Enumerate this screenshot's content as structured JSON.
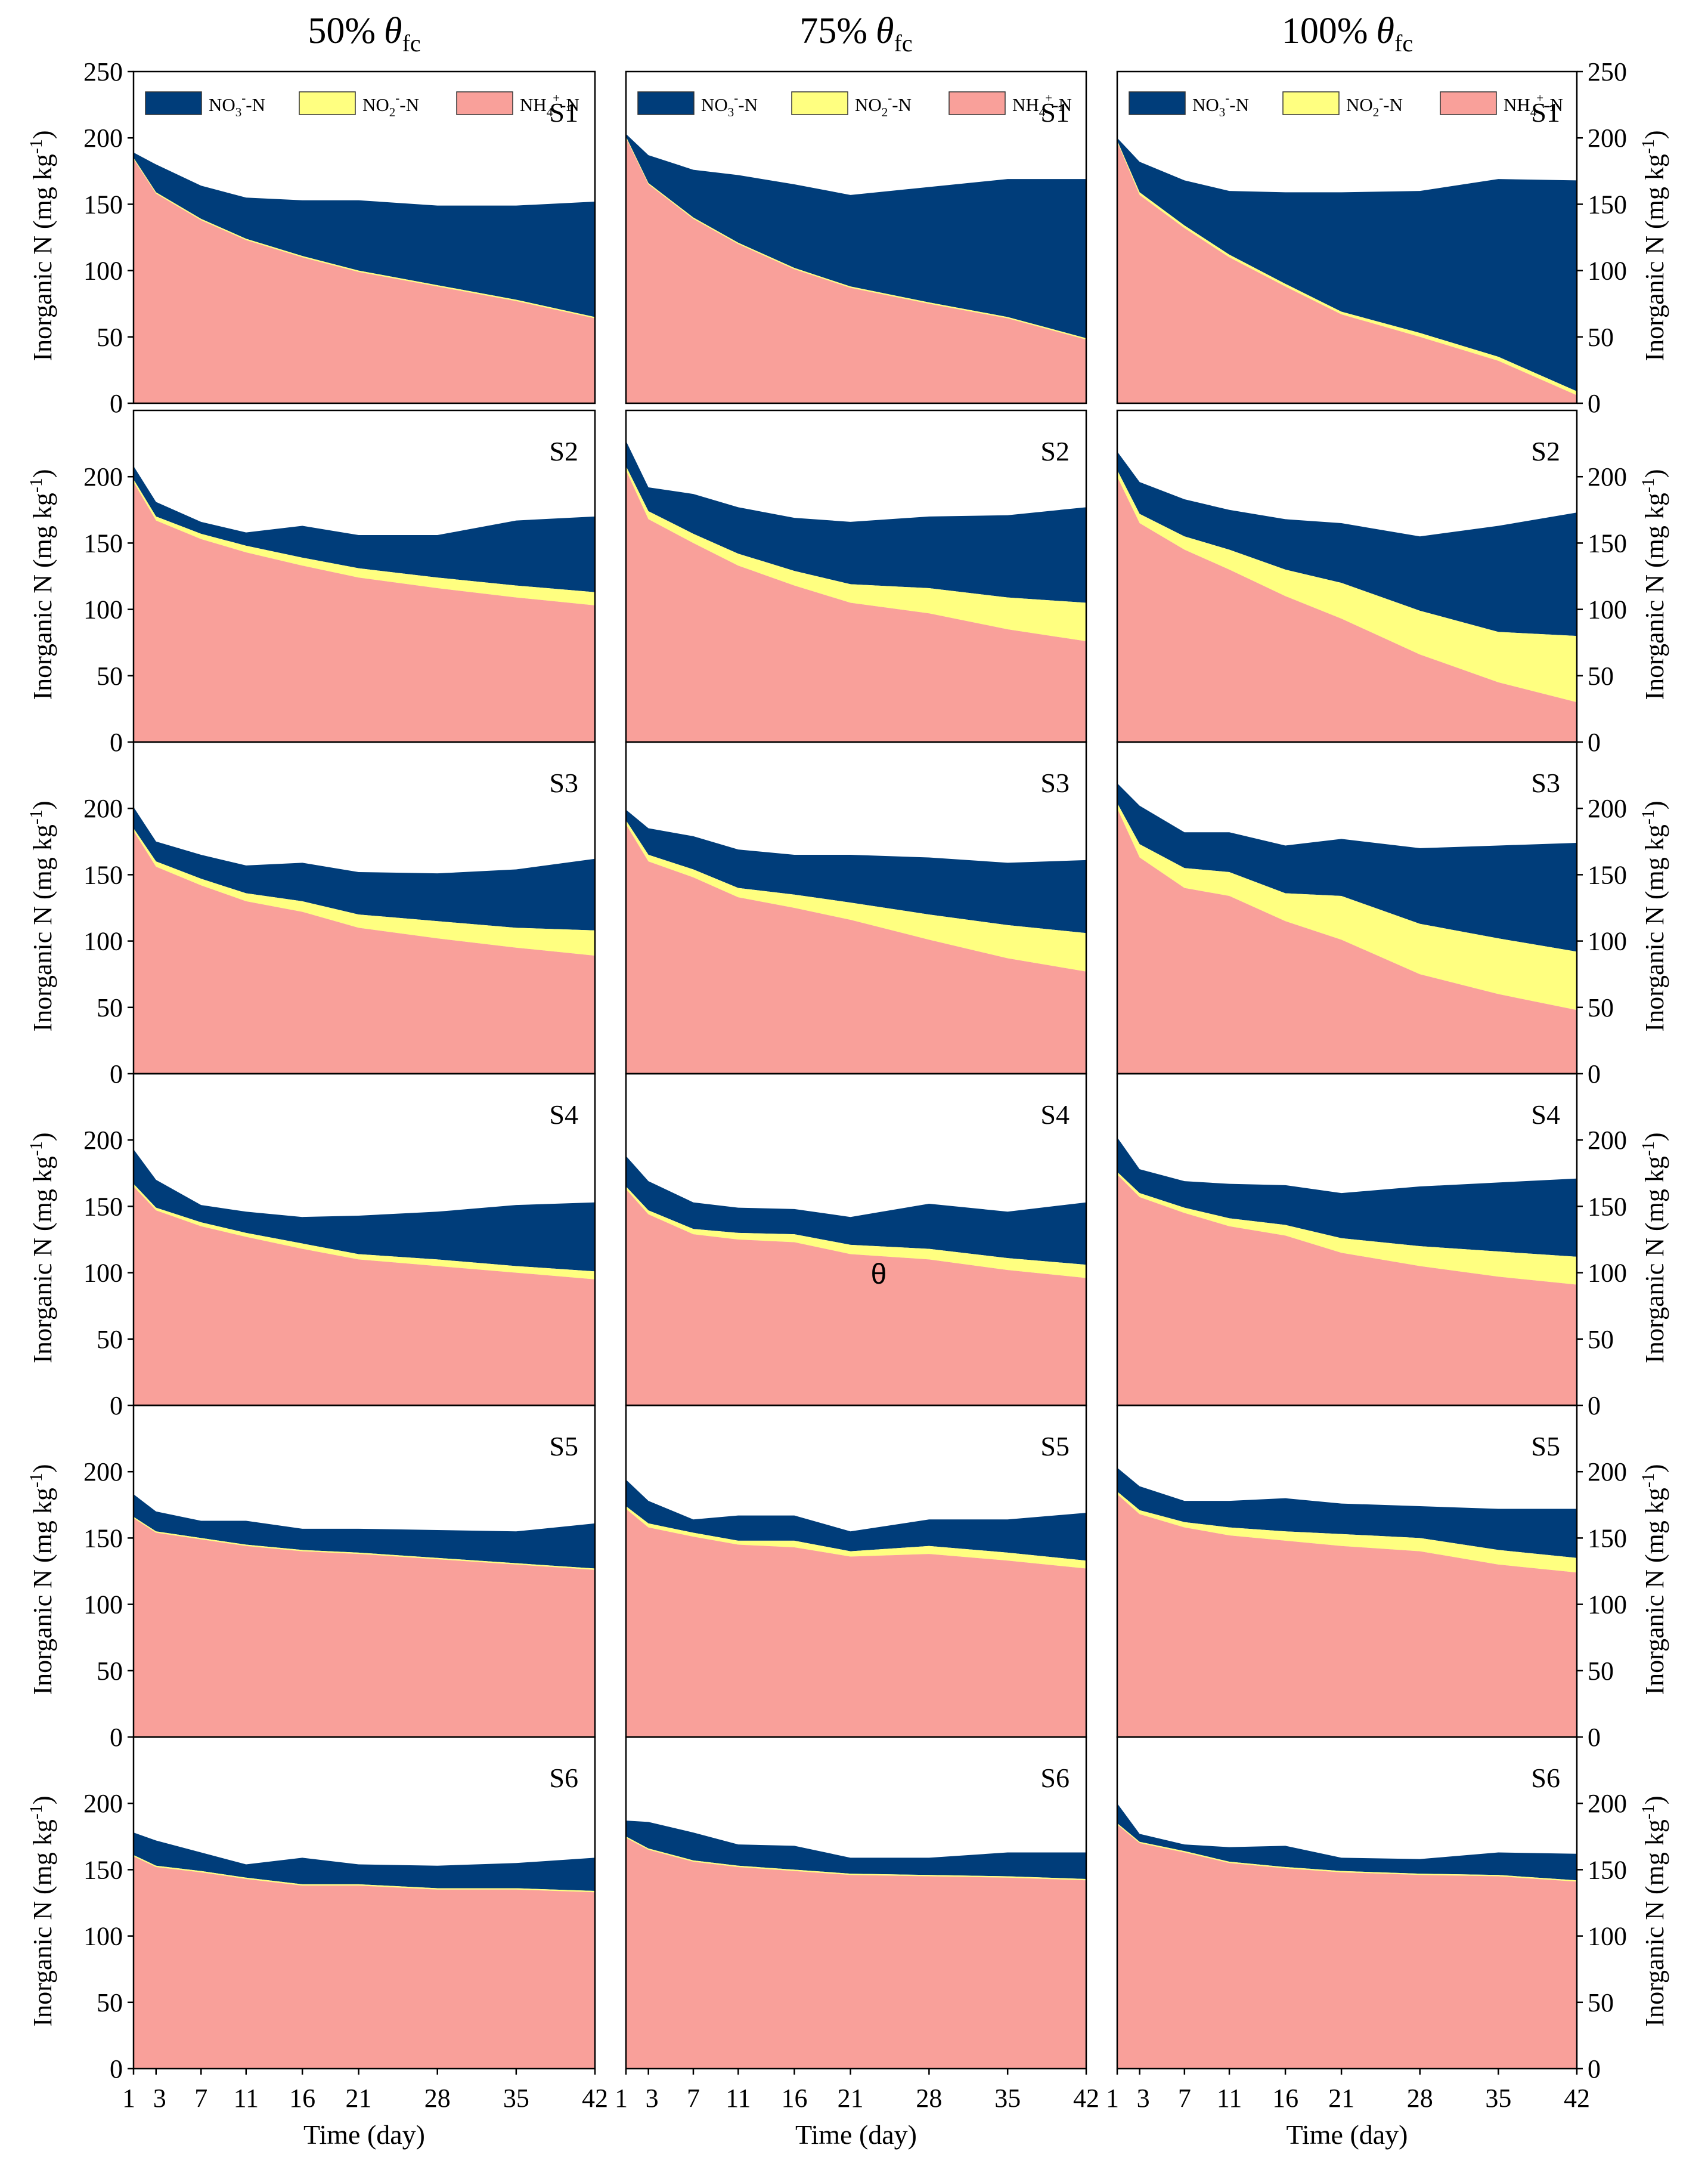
{
  "colors": {
    "no3": "#003D7A",
    "no2": "#FFFF80",
    "nh4": "#F9A09A",
    "axis": "#000000"
  },
  "column_headers": [
    {
      "pct": "50%",
      "theta": "θ",
      "sub": "fc"
    },
    {
      "pct": "75%",
      "theta": "θ",
      "sub": "fc"
    },
    {
      "pct": "100%",
      "theta": "θ",
      "sub": "fc"
    }
  ],
  "legend": {
    "no3": {
      "base": "NO",
      "sub": "3",
      "sup": "-",
      "tail": "-N"
    },
    "no2": {
      "base": "NO",
      "sub": "2",
      "sup": "-",
      "tail": "-N"
    },
    "nh4": {
      "base": "NH",
      "sub": "4",
      "sup": "+",
      "tail": "-N"
    }
  },
  "y_axis": {
    "label_main": "Inorganic N (mg kg",
    "label_sup": "-1",
    "label_close": ")"
  },
  "x_axis": {
    "label": "Time (day)"
  },
  "annotation": "θ",
  "chart_data": {
    "type": "area",
    "stacked": true,
    "x": [
      1,
      3,
      7,
      11,
      16,
      21,
      28,
      35,
      42
    ],
    "x_ticks": [
      "1",
      "3",
      "7",
      "11",
      "16",
      "21",
      "28",
      "35",
      "42"
    ],
    "xlim": [
      1,
      42
    ],
    "ylim": [
      0,
      250
    ],
    "y_ticks": [
      "0",
      "50",
      "100",
      "150",
      "200",
      "250"
    ],
    "series_names": [
      "NH4+-N",
      "NO2--N",
      "NO3--N"
    ],
    "rows": [
      "S1",
      "S2",
      "S3",
      "S4",
      "S5",
      "S6"
    ],
    "columns": [
      "50% θfc",
      "75% θfc",
      "100% θfc"
    ],
    "panels": [
      [
        {
          "label": "S1",
          "nh4": [
            184,
            158,
            138,
            123,
            110,
            99,
            88,
            77,
            64
          ],
          "no2": [
            1,
            1,
            1,
            1,
            1,
            1,
            1,
            1,
            1
          ],
          "no3": [
            4,
            21,
            25,
            31,
            42,
            53,
            60,
            71,
            87
          ]
        },
        {
          "label": "S1",
          "nh4": [
            200,
            165,
            139,
            120,
            101,
            87,
            75,
            64,
            48
          ],
          "no2": [
            1,
            1,
            1,
            1,
            1,
            1,
            1,
            1,
            1
          ],
          "no3": [
            2,
            21,
            36,
            51,
            63,
            69,
            87,
            104,
            120
          ]
        },
        {
          "label": "S1",
          "nh4": [
            197,
            157,
            132,
            110,
            88,
            67,
            50,
            32,
            6
          ],
          "no2": [
            1,
            2,
            2,
            2,
            2,
            2,
            3,
            3,
            3
          ],
          "no3": [
            2,
            23,
            34,
            48,
            69,
            90,
            107,
            134,
            159
          ]
        }
      ],
      [
        {
          "label": "S2",
          "nh4": [
            196,
            167,
            153,
            143,
            133,
            124,
            116,
            109,
            103
          ],
          "no2": [
            2,
            3,
            4,
            5,
            6,
            7,
            8,
            9,
            10
          ],
          "no3": [
            10,
            11,
            9,
            10,
            24,
            25,
            32,
            49,
            57
          ]
        },
        {
          "label": "S2",
          "nh4": [
            205,
            168,
            150,
            133,
            118,
            105,
            97,
            85,
            76
          ],
          "no2": [
            3,
            6,
            7,
            9,
            11,
            14,
            19,
            24,
            29
          ],
          "no3": [
            19,
            18,
            30,
            35,
            40,
            47,
            54,
            62,
            72
          ]
        },
        {
          "label": "S2",
          "nh4": [
            200,
            165,
            145,
            130,
            110,
            93,
            66,
            45,
            30
          ],
          "no2": [
            5,
            7,
            10,
            15,
            20,
            27,
            33,
            38,
            50
          ],
          "no3": [
            14,
            24,
            28,
            30,
            38,
            45,
            56,
            80,
            93
          ]
        }
      ],
      [
        {
          "label": "S3",
          "nh4": [
            183,
            156,
            142,
            130,
            122,
            110,
            102,
            95,
            89
          ],
          "no2": [
            2,
            4,
            5,
            6,
            8,
            10,
            13,
            15,
            19
          ],
          "no3": [
            16,
            15,
            18,
            21,
            29,
            32,
            36,
            44,
            54
          ]
        },
        {
          "label": "S3",
          "nh4": [
            188,
            160,
            148,
            133,
            125,
            116,
            101,
            87,
            77
          ],
          "no2": [
            3,
            5,
            6,
            7,
            10,
            13,
            19,
            25,
            29
          ],
          "no3": [
            8,
            20,
            25,
            29,
            30,
            36,
            43,
            47,
            55
          ]
        },
        {
          "label": "S3",
          "nh4": [
            200,
            163,
            140,
            134,
            115,
            101,
            75,
            60,
            48
          ],
          "no2": [
            4,
            10,
            15,
            18,
            21,
            33,
            38,
            42,
            44
          ],
          "no3": [
            15,
            29,
            27,
            30,
            36,
            43,
            57,
            70,
            82
          ]
        }
      ],
      [
        {
          "label": "S4",
          "nh4": [
            165,
            147,
            135,
            127,
            118,
            110,
            105,
            100,
            95
          ],
          "no2": [
            2,
            2,
            3,
            3,
            4,
            4,
            5,
            5,
            6
          ],
          "no3": [
            26,
            21,
            13,
            16,
            20,
            29,
            36,
            46,
            52
          ]
        },
        {
          "label": "S4",
          "nh4": [
            163,
            144,
            129,
            125,
            123,
            114,
            110,
            102,
            96
          ],
          "no2": [
            2,
            3,
            4,
            5,
            6,
            7,
            8,
            9,
            10
          ],
          "no3": [
            23,
            22,
            20,
            19,
            19,
            21,
            34,
            35,
            47
          ]
        },
        {
          "label": "S4",
          "nh4": [
            174,
            157,
            145,
            135,
            128,
            115,
            105,
            97,
            91
          ],
          "no2": [
            2,
            3,
            4,
            6,
            8,
            11,
            15,
            19,
            21
          ],
          "no3": [
            26,
            18,
            20,
            26,
            30,
            34,
            45,
            52,
            59
          ]
        }
      ],
      [
        {
          "label": "S5",
          "nh4": [
            165,
            154,
            149,
            144,
            140,
            138,
            134,
            130,
            126
          ],
          "no2": [
            1,
            1,
            1,
            1,
            1,
            1,
            1,
            1,
            1
          ],
          "no3": [
            17,
            15,
            13,
            18,
            16,
            18,
            21,
            24,
            34
          ]
        },
        {
          "label": "S5",
          "nh4": [
            172,
            158,
            151,
            145,
            143,
            136,
            138,
            133,
            127
          ],
          "no2": [
            2,
            3,
            3,
            3,
            5,
            4,
            6,
            6,
            6
          ],
          "no3": [
            20,
            17,
            10,
            19,
            19,
            15,
            20,
            25,
            36
          ]
        },
        {
          "label": "S5",
          "nh4": [
            183,
            168,
            158,
            152,
            148,
            144,
            140,
            130,
            124
          ],
          "no2": [
            2,
            3,
            4,
            6,
            7,
            9,
            10,
            11,
            11
          ],
          "no3": [
            18,
            18,
            16,
            20,
            25,
            23,
            24,
            31,
            37
          ]
        }
      ],
      [
        {
          "label": "S6",
          "nh4": [
            160,
            152,
            148,
            143,
            138,
            138,
            135,
            135,
            133
          ],
          "no2": [
            1,
            1,
            1,
            1,
            1,
            1,
            1,
            1,
            1
          ],
          "no3": [
            17,
            19,
            14,
            10,
            20,
            15,
            17,
            19,
            25
          ]
        },
        {
          "label": "S6",
          "nh4": [
            174,
            165,
            156,
            152,
            149,
            146,
            145,
            144,
            142
          ],
          "no2": [
            1,
            1,
            1,
            1,
            1,
            1,
            1,
            1,
            1
          ],
          "no3": [
            12,
            20,
            21,
            16,
            18,
            12,
            13,
            18,
            20
          ]
        },
        {
          "label": "S6",
          "nh4": [
            184,
            170,
            163,
            155,
            151,
            148,
            146,
            145,
            141
          ],
          "no2": [
            1,
            1,
            1,
            1,
            1,
            1,
            1,
            1,
            1
          ],
          "no3": [
            15,
            6,
            5,
            11,
            16,
            10,
            11,
            17,
            20
          ]
        }
      ]
    ]
  }
}
